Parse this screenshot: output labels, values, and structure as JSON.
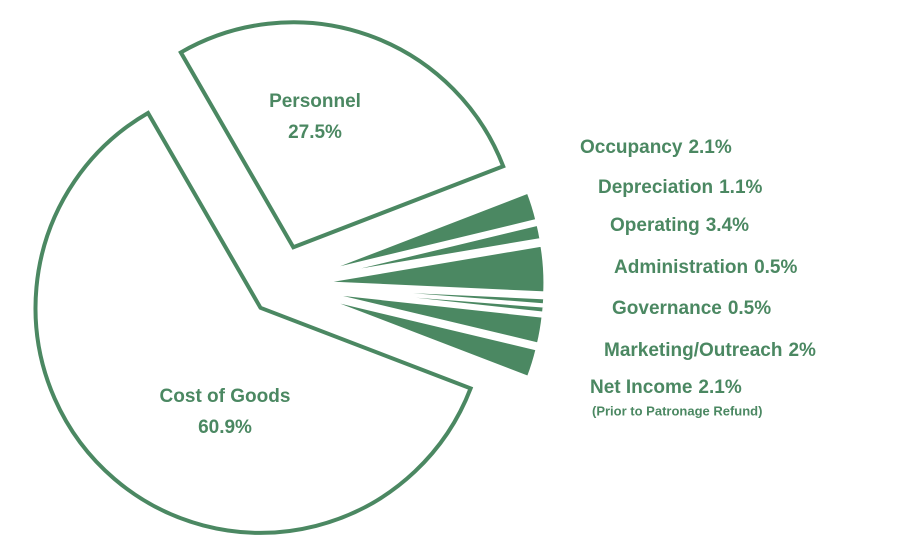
{
  "chart_data": {
    "type": "pie",
    "categories": [
      "Personnel",
      "Occupancy",
      "Depreciation",
      "Operating",
      "Administration",
      "Governance",
      "Marketing/Outreach",
      "Net Income",
      "Cost of Goods"
    ],
    "values": [
      27.5,
      2.1,
      1.1,
      3.4,
      0.5,
      0.5,
      2,
      2.1,
      60.9
    ],
    "value_labels": [
      "27.5%",
      "2.1%",
      "1.1%",
      "3.4%",
      "0.5%",
      "0.5%",
      "2%",
      "2.1%",
      "60.9%"
    ],
    "colors": [
      "#ffffff",
      "#4b8862",
      "#4b8862",
      "#4b8862",
      "#4b8862",
      "#4b8862",
      "#4b8862",
      "#4b8862",
      "#ffffff"
    ],
    "edge_color": "#4b8862",
    "annotation": "(Prior to Patronage Refund)"
  }
}
